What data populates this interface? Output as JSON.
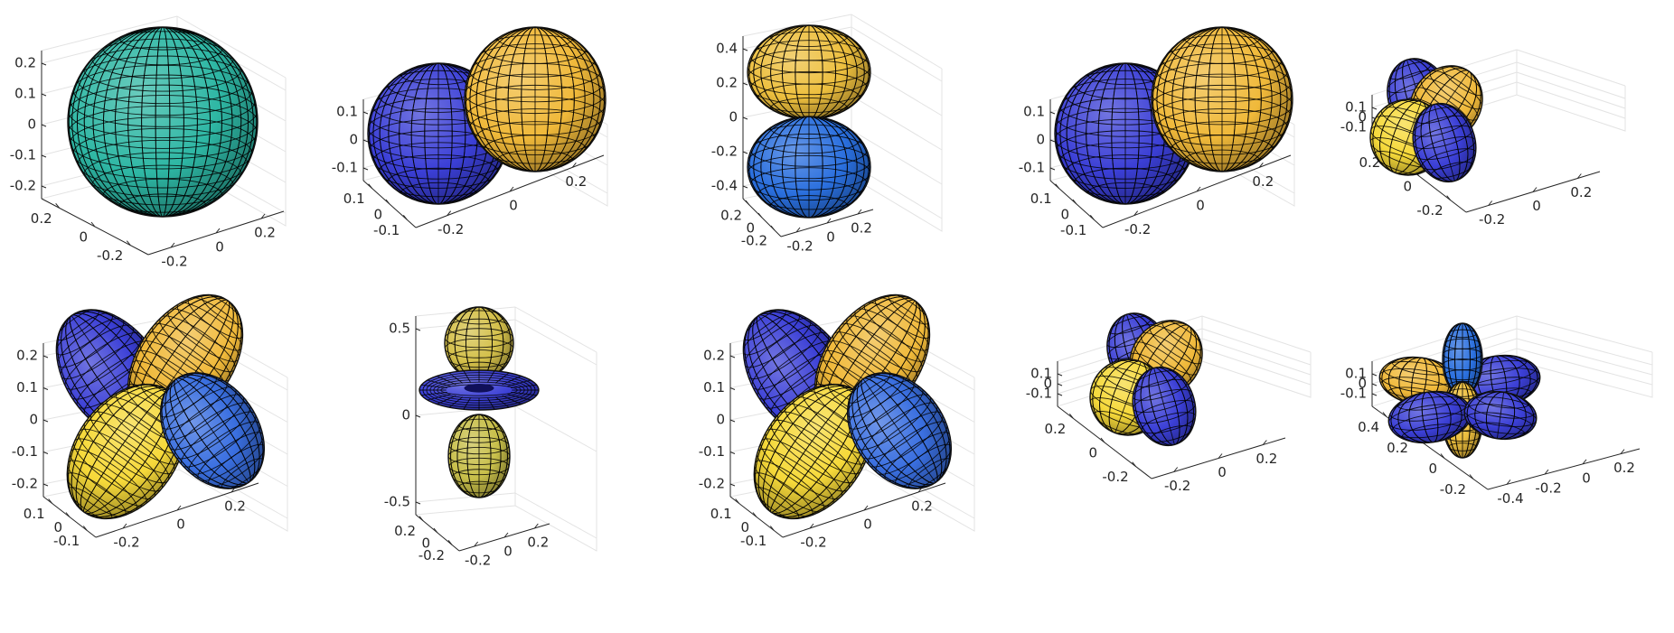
{
  "figure": {
    "colormap": [
      "#352a87",
      "#0f5cdd",
      "#1481d6",
      "#06a4ca",
      "#2eb7a4",
      "#87bf77",
      "#d1bb59",
      "#fec832",
      "#f9fb0e"
    ]
  },
  "chart_data": [
    {
      "type": "surface-3d",
      "panel": "row1-col1",
      "grid": true,
      "title": "",
      "xlabel": "",
      "ylabel": "",
      "zlabel": "",
      "zticks": [
        "0.2",
        "0.1",
        "0",
        "-0.1",
        "-0.2"
      ],
      "zlim": [
        -0.28,
        0.28
      ],
      "xticks": [
        "0.2",
        "0",
        "-0.2"
      ],
      "yticks": [
        "0.2",
        "0",
        "-0.2"
      ],
      "lobes": [
        {
          "shape": "sphere",
          "color": "#2eb7a4"
        }
      ]
    },
    {
      "type": "surface-3d",
      "panel": "row1-col2",
      "grid": true,
      "title": "",
      "xlabel": "",
      "ylabel": "",
      "zlabel": "",
      "zticks": [
        "0.1",
        "0",
        "-0.1"
      ],
      "zlim": [
        -0.17,
        0.17
      ],
      "xticks": [
        "0.1",
        "0",
        "-0.1"
      ],
      "yticks": [
        "0.2",
        "0",
        "-0.2"
      ],
      "lobes": [
        {
          "shape": "lobe",
          "color": "#3b3fd6"
        },
        {
          "shape": "lobe",
          "color": "#f0b93a"
        }
      ]
    },
    {
      "type": "surface-3d",
      "panel": "row1-col3",
      "grid": true,
      "title": "",
      "xlabel": "",
      "ylabel": "",
      "zlabel": "",
      "zticks": [
        "0.4",
        "0.2",
        "0",
        "-0.2",
        "-0.4"
      ],
      "zlim": [
        -0.5,
        0.5
      ],
      "xticks": [
        "0.2",
        "0",
        "-0.2"
      ],
      "yticks": [
        "0.2",
        "0",
        "-0.2"
      ],
      "lobes": [
        {
          "shape": "lobe",
          "color": "#edbf3e"
        },
        {
          "shape": "lobe",
          "color": "#2a6fde"
        }
      ]
    },
    {
      "type": "surface-3d",
      "panel": "row1-col4",
      "grid": true,
      "title": "",
      "xlabel": "",
      "ylabel": "",
      "zlabel": "",
      "zticks": [
        "0.1",
        "0",
        "-0.1"
      ],
      "zlim": [
        -0.17,
        0.17
      ],
      "xticks": [
        "0.1",
        "0",
        "-0.1"
      ],
      "yticks": [
        "0.2",
        "0",
        "-0.2"
      ],
      "lobes": [
        {
          "shape": "lobe",
          "color": "#3b3fd6"
        },
        {
          "shape": "lobe",
          "color": "#f0b93a"
        }
      ]
    },
    {
      "type": "surface-3d",
      "panel": "row1-col5",
      "grid": true,
      "title": "",
      "xlabel": "",
      "ylabel": "",
      "zlabel": "",
      "zticks": [
        "0.1",
        "0",
        "-0.1"
      ],
      "zlim": [
        -0.17,
        0.17
      ],
      "xticks": [
        "0.2",
        "0",
        "-0.2"
      ],
      "yticks": [
        "0.2",
        "0",
        "-0.2"
      ],
      "lobes": [
        {
          "shape": "lobe",
          "color": "#3b3fd6"
        },
        {
          "shape": "lobe",
          "color": "#f0b93a"
        },
        {
          "shape": "lobe",
          "color": "#f6d93a"
        },
        {
          "shape": "lobe",
          "color": "#3b3fd6"
        }
      ]
    },
    {
      "type": "surface-3d",
      "panel": "row2-col1",
      "grid": true,
      "title": "",
      "xlabel": "",
      "ylabel": "",
      "zlabel": "",
      "zticks": [
        "0.2",
        "0.1",
        "0",
        "-0.1",
        "-0.2"
      ],
      "zlim": [
        -0.28,
        0.28
      ],
      "xticks": [
        "0.1",
        "0",
        "-0.1"
      ],
      "yticks": [
        "0.2",
        "0",
        "-0.2"
      ],
      "lobes": [
        {
          "shape": "lobe",
          "color": "#3b3fd6"
        },
        {
          "shape": "lobe",
          "color": "#f0b93a"
        },
        {
          "shape": "lobe",
          "color": "#f6d93a"
        },
        {
          "shape": "lobe",
          "color": "#3a6fe0"
        }
      ]
    },
    {
      "type": "surface-3d",
      "panel": "row2-col2",
      "grid": true,
      "title": "",
      "xlabel": "",
      "ylabel": "",
      "zlabel": "",
      "zticks": [
        "0.5",
        "0",
        "-0.5"
      ],
      "zlim": [
        -0.65,
        0.65
      ],
      "xticks": [
        "0.2",
        "0",
        "-0.2"
      ],
      "yticks": [
        "0.2",
        "0",
        "-0.2"
      ],
      "lobes": [
        {
          "shape": "lobe",
          "color": "#d4c04a"
        },
        {
          "shape": "torus",
          "color": "#3b3fd6"
        },
        {
          "shape": "lobe",
          "color": "#c8bf4a"
        }
      ]
    },
    {
      "type": "surface-3d",
      "panel": "row2-col3",
      "grid": true,
      "title": "",
      "xlabel": "",
      "ylabel": "",
      "zlabel": "",
      "zticks": [
        "0.2",
        "0.1",
        "0",
        "-0.1",
        "-0.2"
      ],
      "zlim": [
        -0.28,
        0.28
      ],
      "xticks": [
        "0.1",
        "0",
        "-0.1"
      ],
      "yticks": [
        "0.2",
        "0",
        "-0.2"
      ],
      "lobes": [
        {
          "shape": "lobe",
          "color": "#3b3fd6"
        },
        {
          "shape": "lobe",
          "color": "#f0b93a"
        },
        {
          "shape": "lobe",
          "color": "#f6d93a"
        },
        {
          "shape": "lobe",
          "color": "#3a6fe0"
        }
      ]
    },
    {
      "type": "surface-3d",
      "panel": "row2-col4",
      "grid": true,
      "title": "",
      "xlabel": "",
      "ylabel": "",
      "zlabel": "",
      "zticks": [
        "0.1",
        "0",
        "-0.1"
      ],
      "zlim": [
        -0.17,
        0.17
      ],
      "xticks": [
        "0.2",
        "0",
        "-0.2"
      ],
      "yticks": [
        "0.2",
        "0",
        "-0.2"
      ],
      "lobes": [
        {
          "shape": "lobe",
          "color": "#3b3fd6"
        },
        {
          "shape": "lobe",
          "color": "#f0b93a"
        },
        {
          "shape": "lobe",
          "color": "#f6d93a"
        },
        {
          "shape": "lobe",
          "color": "#3b3fd6"
        }
      ]
    },
    {
      "type": "surface-3d",
      "panel": "row2-col5",
      "grid": true,
      "title": "",
      "xlabel": "",
      "ylabel": "",
      "zlabel": "",
      "zticks": [
        "0.1",
        "0",
        "-0.1"
      ],
      "zlim": [
        -0.17,
        0.17
      ],
      "xticks": [
        "0.4",
        "0.2",
        "0",
        "-0.2"
      ],
      "yticks": [
        "0.2",
        "0",
        "-0.2",
        "-0.4"
      ],
      "lobes": [
        {
          "shape": "lobe",
          "color": "#f0b93a"
        },
        {
          "shape": "lobe",
          "color": "#3b3fd6"
        },
        {
          "shape": "lobe",
          "color": "#2a6fde"
        },
        {
          "shape": "lobe",
          "color": "#edbf3e"
        },
        {
          "shape": "lobe",
          "color": "#3b3fd6"
        }
      ]
    }
  ]
}
